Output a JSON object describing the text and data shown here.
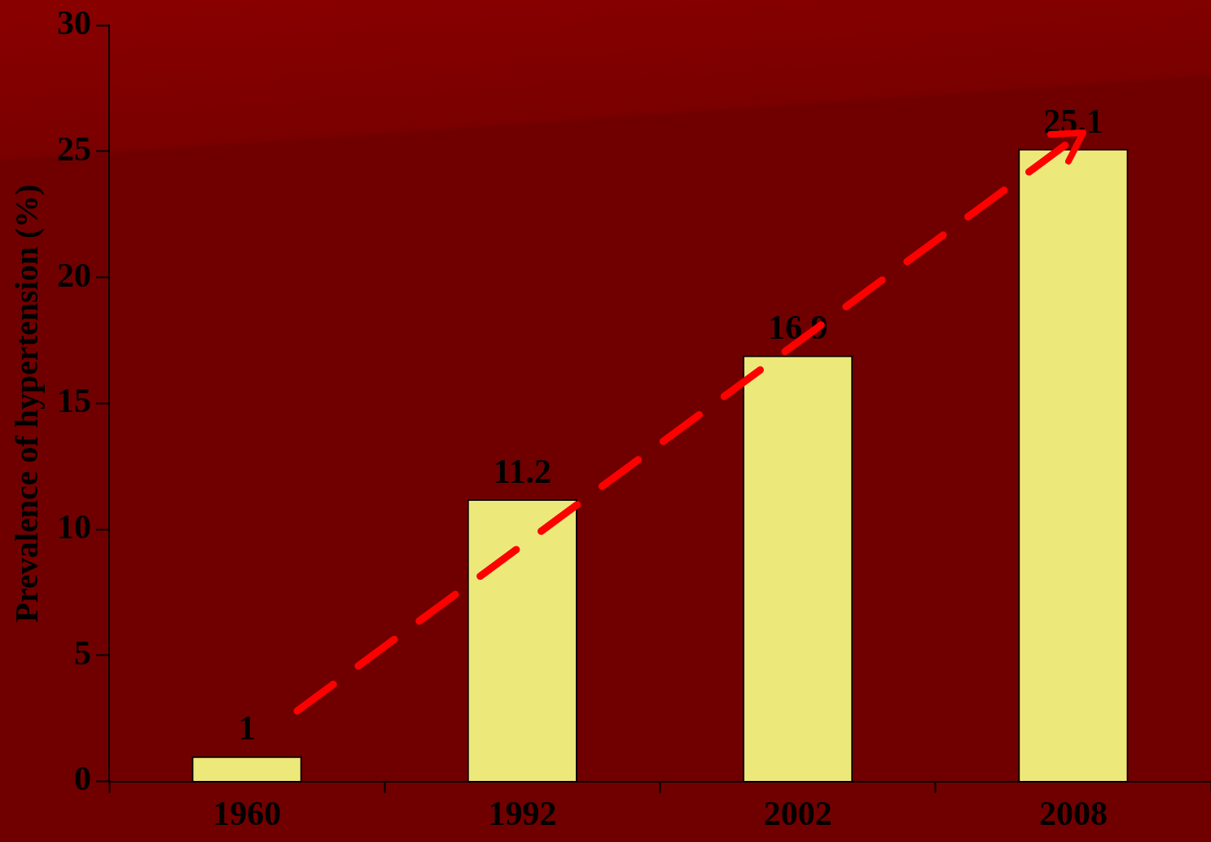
{
  "chart_data": {
    "type": "bar",
    "ylabel": "Prevalence of hypertension (%)",
    "categories": [
      "1960",
      "1992",
      "2002",
      "2008"
    ],
    "values": [
      1,
      11.2,
      16.9,
      25.1
    ],
    "color": "#ede87a",
    "ylim": [
      0,
      30
    ],
    "yticks": [
      0,
      5,
      10,
      15,
      20,
      25,
      30
    ],
    "grid": false,
    "legend": false,
    "data_labels": true
  }
}
